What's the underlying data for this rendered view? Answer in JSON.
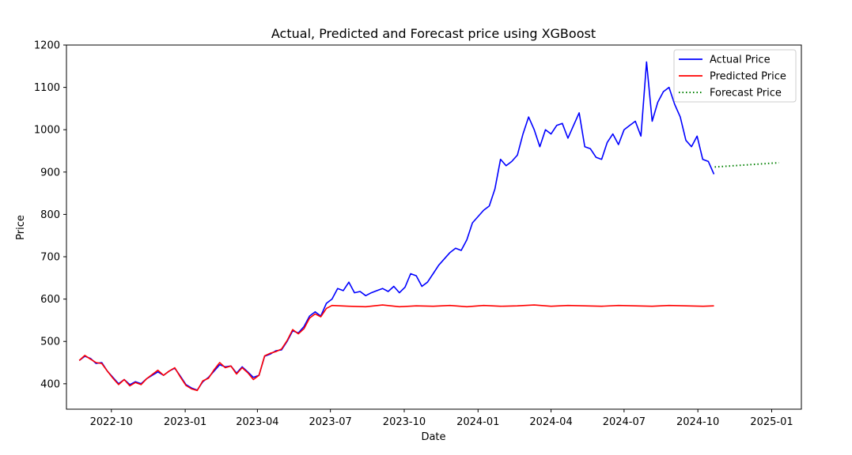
{
  "chart_data": {
    "type": "line",
    "title": "Actual, Predicted and Forecast price using XGBoost",
    "xlabel": "Date",
    "ylabel": "Price",
    "xlim": [
      "2022-08-06",
      "2025-02-07"
    ],
    "ylim": [
      340,
      1200
    ],
    "x_ticks": [
      "2022-10",
      "2023-01",
      "2023-04",
      "2023-07",
      "2023-10",
      "2024-01",
      "2024-04",
      "2024-07",
      "2024-10",
      "2025-01"
    ],
    "y_ticks": [
      400,
      500,
      600,
      700,
      800,
      900,
      1000,
      1100,
      1200
    ],
    "grid": false,
    "legend_position": "top-right",
    "series": [
      {
        "name": "Actual Price",
        "color": "#0000ff",
        "style": "solid",
        "points": [
          [
            "2022-08-22",
            455
          ],
          [
            "2022-08-29",
            465
          ],
          [
            "2022-09-05",
            460
          ],
          [
            "2022-09-12",
            448
          ],
          [
            "2022-09-19",
            450
          ],
          [
            "2022-09-26",
            430
          ],
          [
            "2022-10-03",
            415
          ],
          [
            "2022-10-10",
            400
          ],
          [
            "2022-10-17",
            410
          ],
          [
            "2022-10-24",
            398
          ],
          [
            "2022-10-31",
            405
          ],
          [
            "2022-11-07",
            400
          ],
          [
            "2022-11-14",
            412
          ],
          [
            "2022-11-21",
            420
          ],
          [
            "2022-11-28",
            428
          ],
          [
            "2022-12-05",
            420
          ],
          [
            "2022-12-12",
            430
          ],
          [
            "2022-12-19",
            437
          ],
          [
            "2022-12-26",
            418
          ],
          [
            "2023-01-02",
            398
          ],
          [
            "2023-01-09",
            390
          ],
          [
            "2023-01-16",
            385
          ],
          [
            "2023-01-23",
            405
          ],
          [
            "2023-01-30",
            415
          ],
          [
            "2023-02-06",
            430
          ],
          [
            "2023-02-13",
            445
          ],
          [
            "2023-02-20",
            440
          ],
          [
            "2023-02-27",
            442
          ],
          [
            "2023-03-06",
            425
          ],
          [
            "2023-03-13",
            440
          ],
          [
            "2023-03-20",
            428
          ],
          [
            "2023-03-27",
            415
          ],
          [
            "2023-04-03",
            420
          ],
          [
            "2023-04-10",
            465
          ],
          [
            "2023-04-17",
            470
          ],
          [
            "2023-04-24",
            478
          ],
          [
            "2023-05-01",
            480
          ],
          [
            "2023-05-08",
            500
          ],
          [
            "2023-05-15",
            525
          ],
          [
            "2023-05-22",
            520
          ],
          [
            "2023-05-29",
            535
          ],
          [
            "2023-06-05",
            560
          ],
          [
            "2023-06-12",
            570
          ],
          [
            "2023-06-19",
            560
          ],
          [
            "2023-06-26",
            590
          ],
          [
            "2023-07-03",
            600
          ],
          [
            "2023-07-10",
            625
          ],
          [
            "2023-07-17",
            620
          ],
          [
            "2023-07-24",
            640
          ],
          [
            "2023-07-31",
            615
          ],
          [
            "2023-08-07",
            618
          ],
          [
            "2023-08-14",
            608
          ],
          [
            "2023-08-21",
            615
          ],
          [
            "2023-08-28",
            620
          ],
          [
            "2023-09-04",
            625
          ],
          [
            "2023-09-11",
            618
          ],
          [
            "2023-09-18",
            630
          ],
          [
            "2023-09-25",
            615
          ],
          [
            "2023-10-02",
            628
          ],
          [
            "2023-10-09",
            660
          ],
          [
            "2023-10-16",
            655
          ],
          [
            "2023-10-23",
            630
          ],
          [
            "2023-10-30",
            640
          ],
          [
            "2023-11-06",
            660
          ],
          [
            "2023-11-13",
            680
          ],
          [
            "2023-11-20",
            695
          ],
          [
            "2023-11-27",
            710
          ],
          [
            "2023-12-04",
            720
          ],
          [
            "2023-12-11",
            715
          ],
          [
            "2023-12-18",
            740
          ],
          [
            "2023-12-25",
            780
          ],
          [
            "2024-01-01",
            795
          ],
          [
            "2024-01-08",
            810
          ],
          [
            "2024-01-15",
            820
          ],
          [
            "2024-01-22",
            860
          ],
          [
            "2024-01-29",
            930
          ],
          [
            "2024-02-05",
            915
          ],
          [
            "2024-02-12",
            925
          ],
          [
            "2024-02-19",
            940
          ],
          [
            "2024-02-26",
            990
          ],
          [
            "2024-03-04",
            1030
          ],
          [
            "2024-03-11",
            1000
          ],
          [
            "2024-03-18",
            960
          ],
          [
            "2024-03-25",
            1000
          ],
          [
            "2024-04-01",
            990
          ],
          [
            "2024-04-08",
            1010
          ],
          [
            "2024-04-15",
            1015
          ],
          [
            "2024-04-22",
            980
          ],
          [
            "2024-04-29",
            1010
          ],
          [
            "2024-05-06",
            1040
          ],
          [
            "2024-05-13",
            960
          ],
          [
            "2024-05-20",
            955
          ],
          [
            "2024-05-27",
            935
          ],
          [
            "2024-06-03",
            930
          ],
          [
            "2024-06-10",
            970
          ],
          [
            "2024-06-17",
            990
          ],
          [
            "2024-06-24",
            965
          ],
          [
            "2024-07-01",
            1000
          ],
          [
            "2024-07-08",
            1010
          ],
          [
            "2024-07-15",
            1020
          ],
          [
            "2024-07-22",
            985
          ],
          [
            "2024-07-29",
            1160
          ],
          [
            "2024-08-05",
            1020
          ],
          [
            "2024-08-12",
            1065
          ],
          [
            "2024-08-19",
            1090
          ],
          [
            "2024-08-26",
            1100
          ],
          [
            "2024-09-02",
            1060
          ],
          [
            "2024-09-09",
            1030
          ],
          [
            "2024-09-16",
            975
          ],
          [
            "2024-09-23",
            960
          ],
          [
            "2024-09-30",
            985
          ],
          [
            "2024-10-07",
            930
          ],
          [
            "2024-10-14",
            925
          ],
          [
            "2024-10-21",
            895
          ]
        ]
      },
      {
        "name": "Predicted Price",
        "color": "#ff0000",
        "style": "solid",
        "points": [
          [
            "2022-08-22",
            455
          ],
          [
            "2022-08-29",
            467
          ],
          [
            "2022-09-05",
            458
          ],
          [
            "2022-09-12",
            450
          ],
          [
            "2022-09-19",
            448
          ],
          [
            "2022-09-26",
            430
          ],
          [
            "2022-10-03",
            413
          ],
          [
            "2022-10-10",
            398
          ],
          [
            "2022-10-17",
            410
          ],
          [
            "2022-10-24",
            395
          ],
          [
            "2022-10-31",
            403
          ],
          [
            "2022-11-07",
            398
          ],
          [
            "2022-11-14",
            412
          ],
          [
            "2022-11-21",
            422
          ],
          [
            "2022-11-28",
            432
          ],
          [
            "2022-12-05",
            420
          ],
          [
            "2022-12-12",
            430
          ],
          [
            "2022-12-19",
            438
          ],
          [
            "2022-12-26",
            416
          ],
          [
            "2023-01-02",
            396
          ],
          [
            "2023-01-09",
            388
          ],
          [
            "2023-01-16",
            384
          ],
          [
            "2023-01-23",
            407
          ],
          [
            "2023-01-30",
            413
          ],
          [
            "2023-02-06",
            433
          ],
          [
            "2023-02-13",
            450
          ],
          [
            "2023-02-20",
            438
          ],
          [
            "2023-02-27",
            442
          ],
          [
            "2023-03-06",
            423
          ],
          [
            "2023-03-13",
            438
          ],
          [
            "2023-03-20",
            426
          ],
          [
            "2023-03-27",
            410
          ],
          [
            "2023-04-03",
            420
          ],
          [
            "2023-04-10",
            466
          ],
          [
            "2023-04-17",
            472
          ],
          [
            "2023-04-24",
            476
          ],
          [
            "2023-05-01",
            482
          ],
          [
            "2023-05-08",
            502
          ],
          [
            "2023-05-15",
            528
          ],
          [
            "2023-05-22",
            518
          ],
          [
            "2023-05-29",
            530
          ],
          [
            "2023-06-05",
            555
          ],
          [
            "2023-06-12",
            565
          ],
          [
            "2023-06-19",
            558
          ],
          [
            "2023-06-26",
            578
          ],
          [
            "2023-07-03",
            585
          ],
          [
            "2023-07-24",
            583
          ],
          [
            "2023-08-14",
            582
          ],
          [
            "2023-09-04",
            586
          ],
          [
            "2023-09-25",
            582
          ],
          [
            "2023-10-16",
            584
          ],
          [
            "2023-11-06",
            583
          ],
          [
            "2023-11-27",
            585
          ],
          [
            "2023-12-18",
            582
          ],
          [
            "2024-01-08",
            585
          ],
          [
            "2024-01-29",
            583
          ],
          [
            "2024-02-19",
            584
          ],
          [
            "2024-03-11",
            586
          ],
          [
            "2024-04-01",
            583
          ],
          [
            "2024-04-22",
            585
          ],
          [
            "2024-05-13",
            584
          ],
          [
            "2024-06-03",
            583
          ],
          [
            "2024-06-24",
            585
          ],
          [
            "2024-07-15",
            584
          ],
          [
            "2024-08-05",
            583
          ],
          [
            "2024-08-26",
            585
          ],
          [
            "2024-09-16",
            584
          ],
          [
            "2024-10-07",
            583
          ],
          [
            "2024-10-21",
            584
          ]
        ]
      },
      {
        "name": "Forecast Price",
        "color": "#008000",
        "style": "dotted",
        "points": [
          [
            "2024-10-22",
            912
          ],
          [
            "2025-01-10",
            922
          ]
        ]
      }
    ]
  }
}
